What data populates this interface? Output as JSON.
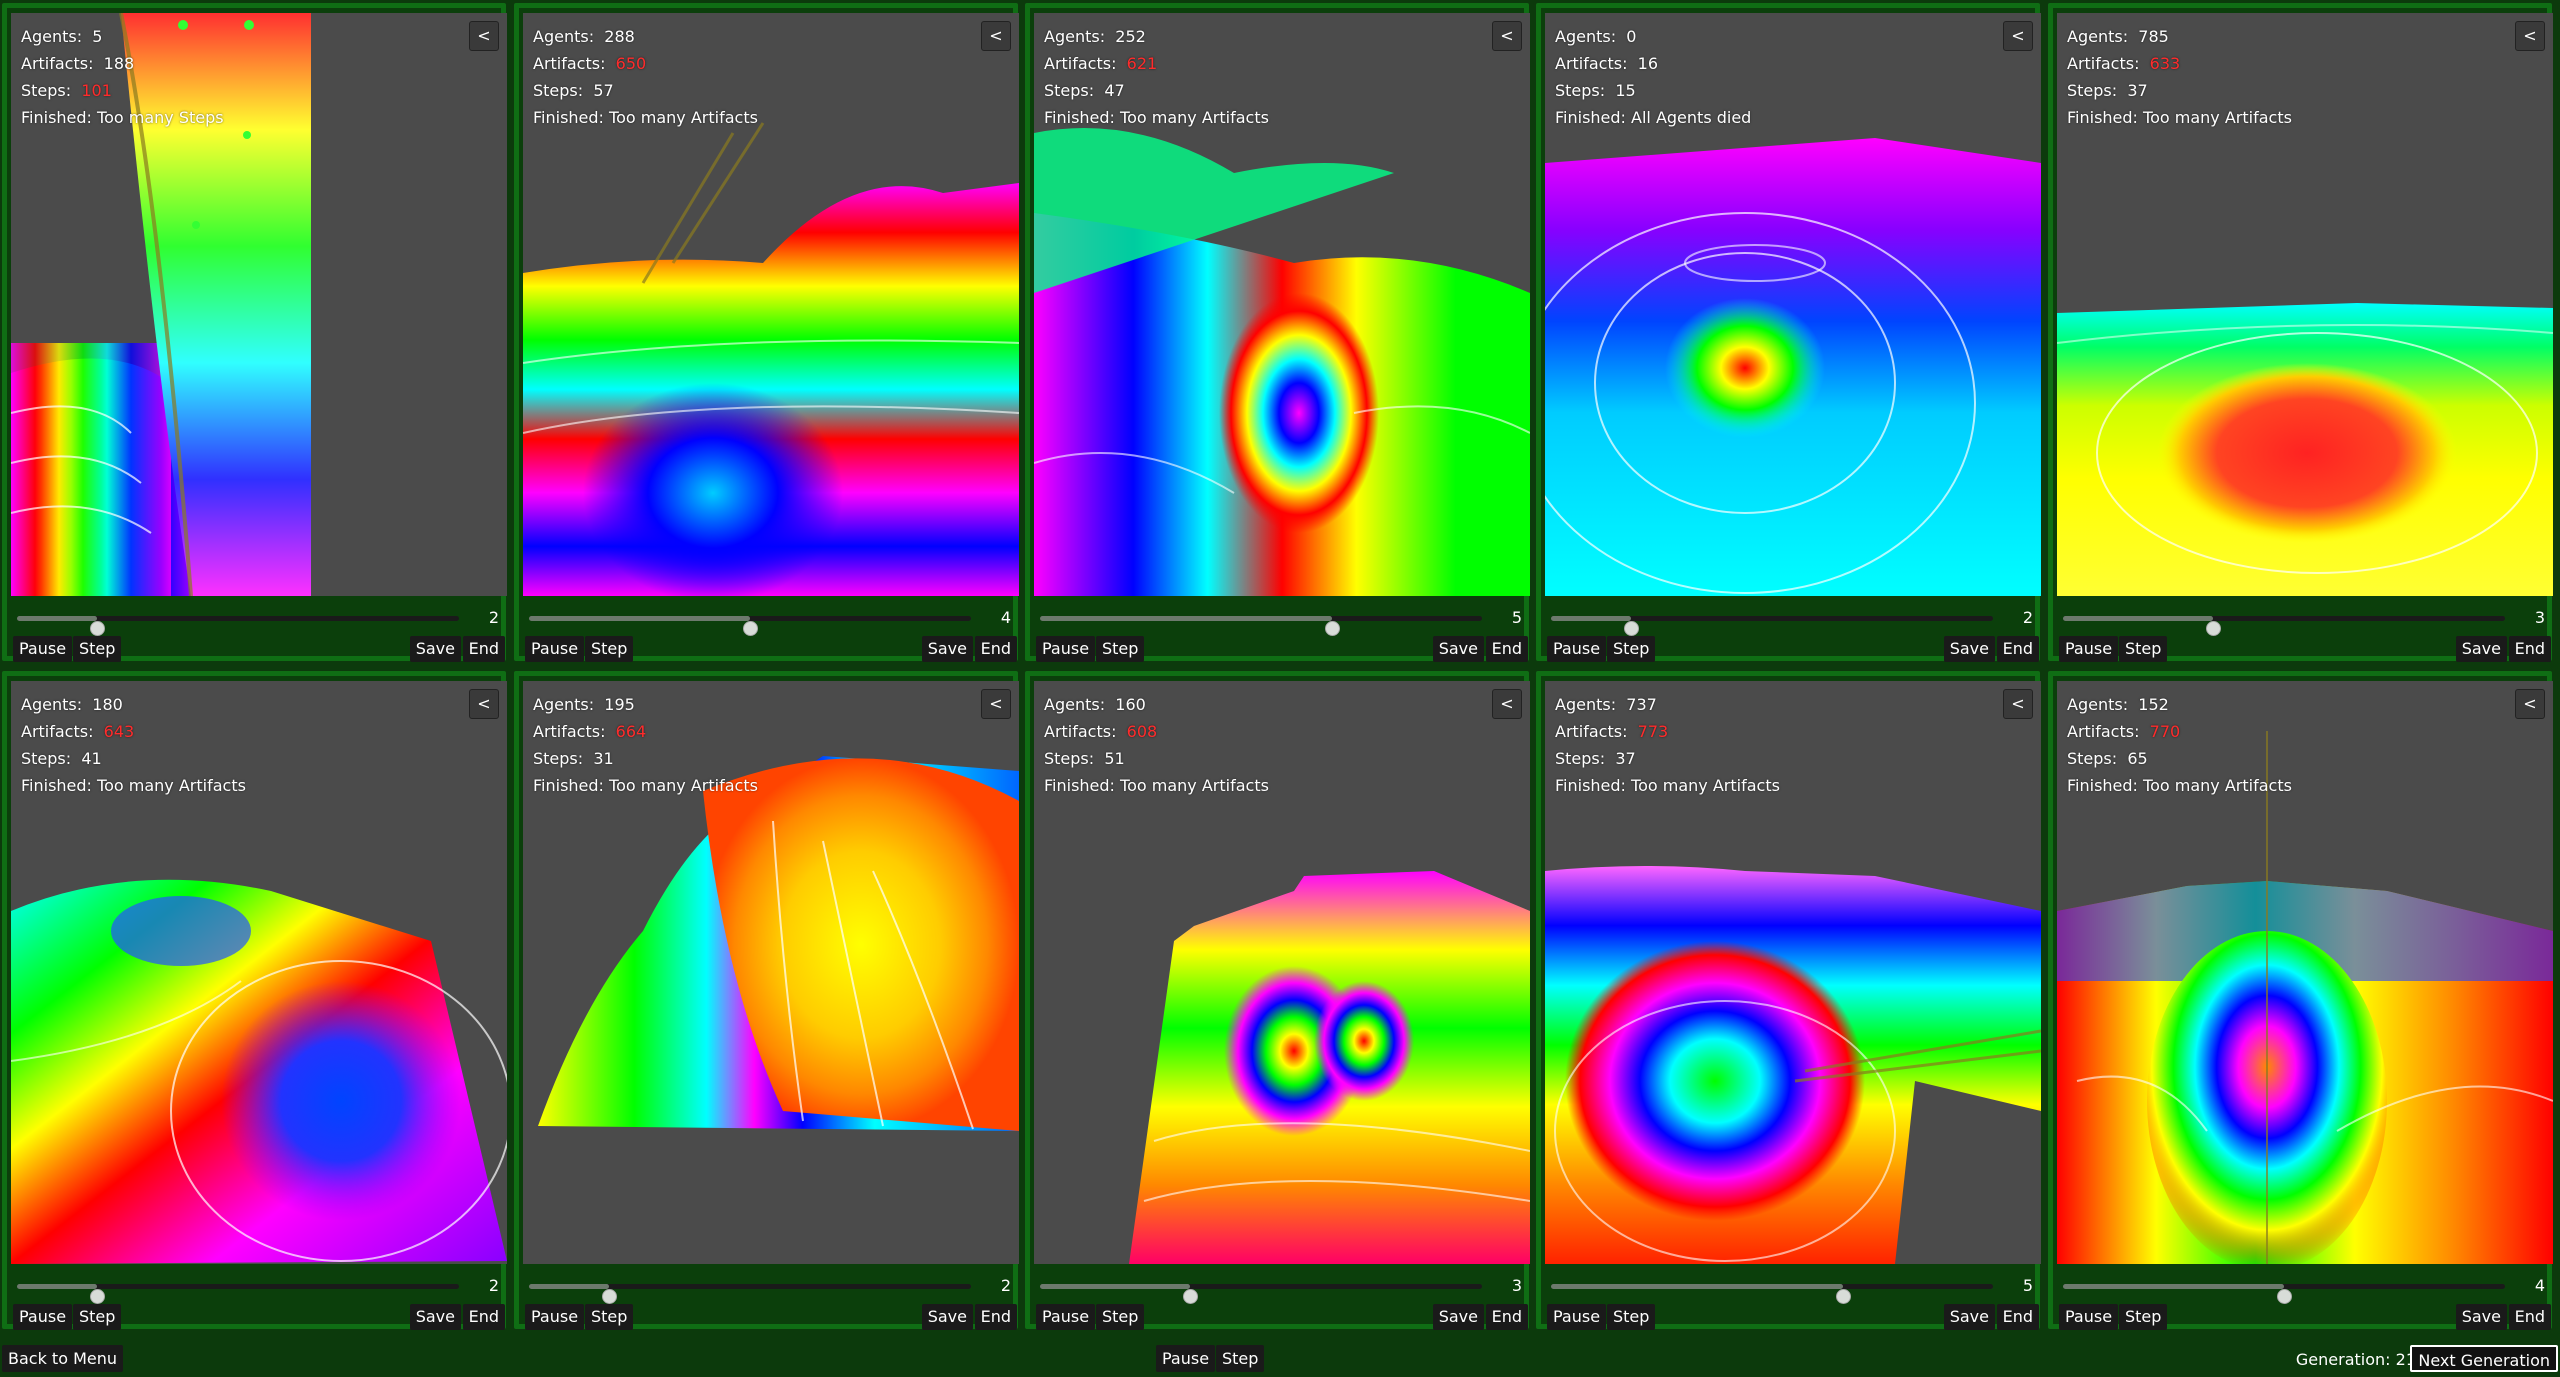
{
  "footer": {
    "back_label": "Back to Menu",
    "pause_label": "Pause",
    "step_label": "Step",
    "generation_label": "Generation: 21",
    "next_label": "Next Generation"
  },
  "labels": {
    "agents": "Agents:",
    "artifacts": "Artifacts:",
    "steps": "Steps:",
    "finished": "Finished:",
    "collapse": "<",
    "pause": "Pause",
    "step": "Step",
    "save": "Save",
    "end": "End"
  },
  "panels": [
    {
      "agents": "5",
      "artifacts": "188",
      "artifacts_red": false,
      "steps": "101",
      "steps_red": true,
      "finished": "Too many Steps",
      "slider_value": "2",
      "slider_fraction": 0.18
    },
    {
      "agents": "288",
      "artifacts": "650",
      "artifacts_red": true,
      "steps": "57",
      "steps_red": false,
      "finished": "Too many Artifacts",
      "slider_value": "4",
      "slider_fraction": 0.5
    },
    {
      "agents": "252",
      "artifacts": "621",
      "artifacts_red": true,
      "steps": "47",
      "steps_red": false,
      "finished": "Too many Artifacts",
      "slider_value": "5",
      "slider_fraction": 0.66
    },
    {
      "agents": "0",
      "artifacts": "16",
      "artifacts_red": false,
      "steps": "15",
      "steps_red": false,
      "finished": "All Agents died",
      "slider_value": "2",
      "slider_fraction": 0.18
    },
    {
      "agents": "785",
      "artifacts": "633",
      "artifacts_red": true,
      "steps": "37",
      "steps_red": false,
      "finished": "Too many Artifacts",
      "slider_value": "3",
      "slider_fraction": 0.34
    },
    {
      "agents": "180",
      "artifacts": "643",
      "artifacts_red": true,
      "steps": "41",
      "steps_red": false,
      "finished": "Too many Artifacts",
      "slider_value": "2",
      "slider_fraction": 0.18
    },
    {
      "agents": "195",
      "artifacts": "664",
      "artifacts_red": true,
      "steps": "31",
      "steps_red": false,
      "finished": "Too many Artifacts",
      "slider_value": "2",
      "slider_fraction": 0.18
    },
    {
      "agents": "160",
      "artifacts": "608",
      "artifacts_red": true,
      "steps": "51",
      "steps_red": false,
      "finished": "Too many Artifacts",
      "slider_value": "3",
      "slider_fraction": 0.34
    },
    {
      "agents": "737",
      "artifacts": "773",
      "artifacts_red": true,
      "steps": "37",
      "steps_red": false,
      "finished": "Too many Artifacts",
      "slider_value": "5",
      "slider_fraction": 0.66
    },
    {
      "agents": "152",
      "artifacts": "770",
      "artifacts_red": true,
      "steps": "65",
      "steps_red": false,
      "finished": "Too many Artifacts",
      "slider_value": "4",
      "slider_fraction": 0.5
    }
  ],
  "colors": {
    "panel_border": "#0f6e14",
    "background": "#0c3a0c",
    "viewport": "#4b4b4b",
    "red_value": "#ff2b2b"
  }
}
